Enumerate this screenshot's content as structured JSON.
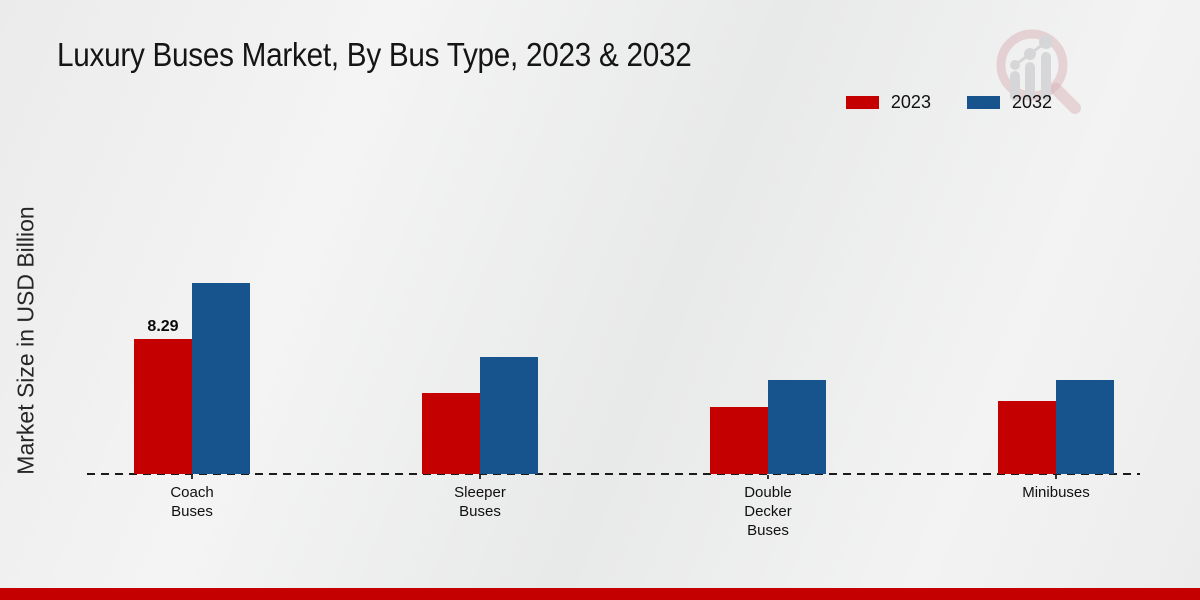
{
  "title": "Luxury Buses Market, By Bus Type, 2023 & 2032",
  "ylabel": "Market Size in USD Billion",
  "legend": {
    "items": [
      {
        "label": "2023",
        "color": "#c40000"
      },
      {
        "label": "2032",
        "color": "#17548e"
      }
    ]
  },
  "branding": {
    "logo_icon": "magnifier-bar-chart-logo"
  },
  "footer": {
    "band_color": "#c40000"
  },
  "colors": {
    "accent_red": "#c40000",
    "accent_blue": "#17548e",
    "axis_line": "#1b1b1b"
  },
  "chart_data": {
    "type": "bar",
    "title": "Luxury Buses Market, By Bus Type, 2023 & 2032",
    "categories": [
      "Coach Buses",
      "Sleeper Buses",
      "Double Decker Buses",
      "Minibuses"
    ],
    "series": [
      {
        "name": "2023",
        "color": "#c40000",
        "values": [
          8.29,
          5.0,
          4.1,
          4.5
        ]
      },
      {
        "name": "2032",
        "color": "#17548e",
        "values": [
          11.7,
          7.2,
          5.8,
          5.8
        ]
      }
    ],
    "data_labels": [
      {
        "series": "2023",
        "category": "Coach Buses",
        "text": "8.29"
      }
    ],
    "xlabel": "",
    "ylabel": "Market Size in USD Billion",
    "ylim": [
      0,
      12
    ],
    "grid": false,
    "legend_position": "top-right",
    "axis_line_style": "dashed",
    "y_axis_ticks_visible": false
  }
}
